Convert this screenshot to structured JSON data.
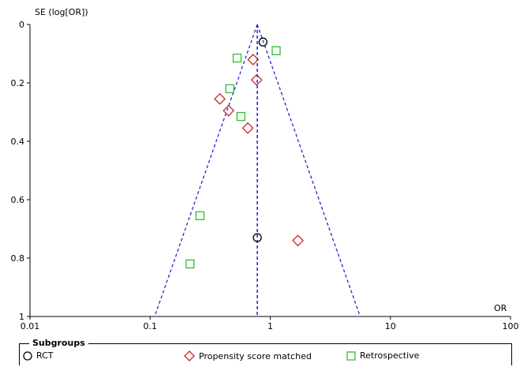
{
  "chart_data": {
    "type": "scatter",
    "chart_subtype": "funnel plot",
    "xlabel": "OR",
    "ylabel": "SE (log[OR])",
    "x_scale": "log",
    "xlim": [
      0.01,
      100
    ],
    "ylim": [
      0,
      1
    ],
    "y_reversed": true,
    "xticks": [
      "0.01",
      "0.1",
      "1",
      "10",
      "100"
    ],
    "yticks": [
      "0",
      "0.2",
      "0.4",
      "0.6",
      "0.8",
      "1"
    ],
    "pooled_or": 0.78,
    "funnel": {
      "apex": [
        0.78,
        0
      ],
      "base_left": [
        0.109,
        1
      ],
      "base_right": [
        5.6,
        1
      ],
      "style": "dashed",
      "color": "#1f2fd0"
    },
    "series": [
      {
        "name": "RCT",
        "marker": "circle",
        "color": "#000000",
        "points": [
          {
            "x": 0.87,
            "y": 0.06
          },
          {
            "x": 0.78,
            "y": 0.73
          }
        ]
      },
      {
        "name": "Propensity score matched",
        "marker": "diamond",
        "color": "#cc2222",
        "points": [
          {
            "x": 0.72,
            "y": 0.12
          },
          {
            "x": 0.77,
            "y": 0.19
          },
          {
            "x": 0.38,
            "y": 0.255
          },
          {
            "x": 0.45,
            "y": 0.295
          },
          {
            "x": 0.65,
            "y": 0.355
          },
          {
            "x": 1.7,
            "y": 0.74
          }
        ]
      },
      {
        "name": "Retrospective",
        "marker": "square",
        "color": "#33bb33",
        "points": [
          {
            "x": 1.12,
            "y": 0.09
          },
          {
            "x": 0.53,
            "y": 0.115
          },
          {
            "x": 0.46,
            "y": 0.22
          },
          {
            "x": 0.57,
            "y": 0.315
          },
          {
            "x": 0.26,
            "y": 0.655
          },
          {
            "x": 0.215,
            "y": 0.82
          }
        ]
      }
    ],
    "legend": {
      "title": "Subgroups",
      "position": "bottom",
      "items": [
        "RCT",
        "Propensity score matched",
        "Retrospective"
      ]
    }
  }
}
